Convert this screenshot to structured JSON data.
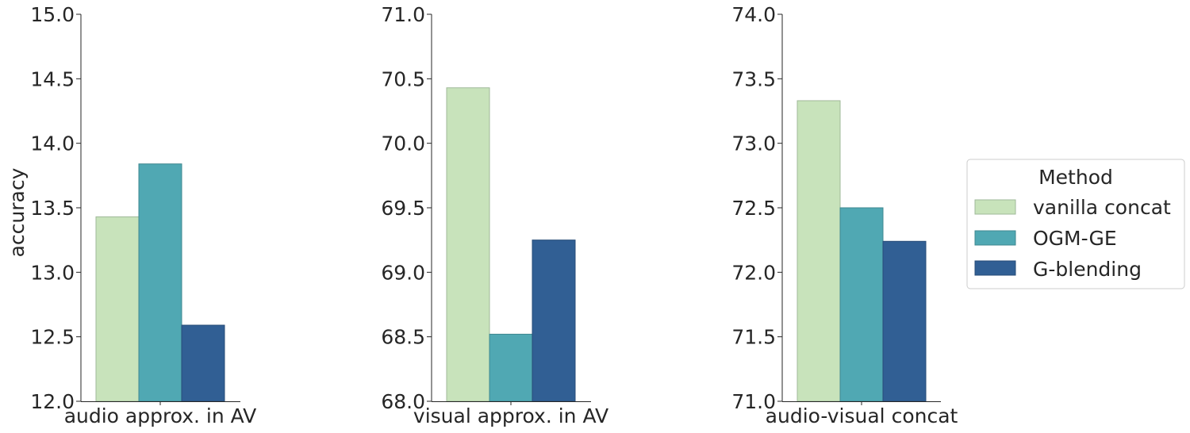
{
  "chart_data": [
    {
      "type": "bar",
      "categories": [
        "audio approx. in AV"
      ],
      "ylabel": "accuracy",
      "ylim": [
        12.0,
        15.0
      ],
      "yticks": [
        "12.0",
        "12.5",
        "13.0",
        "13.5",
        "14.0",
        "14.5",
        "15.0"
      ],
      "series": [
        {
          "name": "vanilla concat",
          "values": [
            13.43
          ]
        },
        {
          "name": "OGM-GE",
          "values": [
            13.84
          ]
        },
        {
          "name": "G-blending",
          "values": [
            12.59
          ]
        }
      ]
    },
    {
      "type": "bar",
      "categories": [
        "visual approx. in AV"
      ],
      "ylabel": "",
      "ylim": [
        68.0,
        71.0
      ],
      "yticks": [
        "68.0",
        "68.5",
        "69.0",
        "69.5",
        "70.0",
        "70.5",
        "71.0"
      ],
      "series": [
        {
          "name": "vanilla concat",
          "values": [
            70.43
          ]
        },
        {
          "name": "OGM-GE",
          "values": [
            68.52
          ]
        },
        {
          "name": "G-blending",
          "values": [
            69.25
          ]
        }
      ]
    },
    {
      "type": "bar",
      "categories": [
        "audio-visual concat"
      ],
      "ylabel": "",
      "ylim": [
        71.0,
        74.0
      ],
      "yticks": [
        "71.0",
        "71.5",
        "72.0",
        "72.5",
        "73.0",
        "73.5",
        "74.0"
      ],
      "series": [
        {
          "name": "vanilla concat",
          "values": [
            73.33
          ]
        },
        {
          "name": "OGM-GE",
          "values": [
            72.5
          ]
        },
        {
          "name": "G-blending",
          "values": [
            72.24
          ]
        }
      ]
    }
  ],
  "legend": {
    "title": "Method",
    "placement": "right",
    "items": [
      {
        "label": "vanilla concat",
        "color": "#c8e3bb"
      },
      {
        "label": "OGM-GE",
        "color": "#50a8b3"
      },
      {
        "label": "G-blending",
        "color": "#315f94"
      }
    ]
  },
  "style": {
    "edge_colors": [
      "#9fb899",
      "#3f8890",
      "#284d78"
    ],
    "axis_color": "#262626"
  }
}
